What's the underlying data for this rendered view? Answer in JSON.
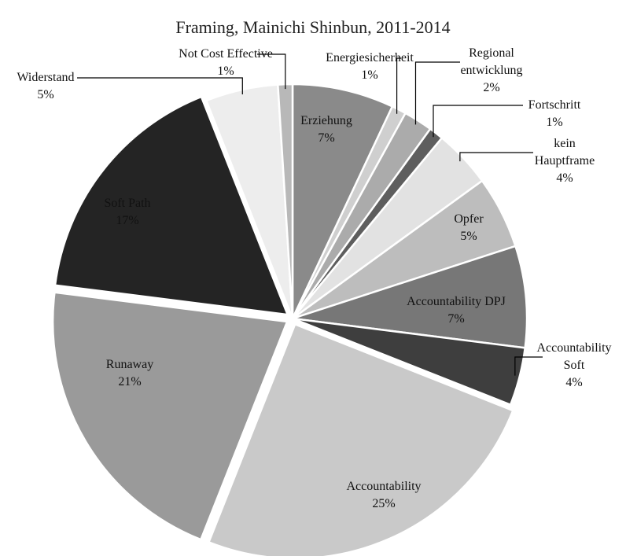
{
  "chart_data": {
    "type": "pie",
    "title": "Framing, Mainichi Shinbun, 2011-2014",
    "categories": [
      "Erziehung",
      "Energiesicherheit",
      "Regional\nentwicklung",
      "Fortschritt",
      "kein Hauptframe",
      "Opfer",
      "Accountability DPJ",
      "Accountability\nSoft",
      "Accountability",
      "Runaway",
      "Soft Path",
      "Widerstand",
      "Not Cost Effective"
    ],
    "values": [
      7,
      1,
      2,
      1,
      4,
      5,
      7,
      4,
      25,
      21,
      17,
      5,
      1
    ],
    "value_labels": [
      "7%",
      "1%",
      "2%",
      "1%",
      "4%",
      "5%",
      "7%",
      "4%",
      "25%",
      "21%",
      "17%",
      "5%",
      "1%"
    ],
    "colors": [
      "#8a8a8a",
      "#cfcfcf",
      "#ababab",
      "#5e5e5e",
      "#e2e2e2",
      "#bdbdbd",
      "#777777",
      "#3e3e3e",
      "#c9c9c9",
      "#9a9a9a",
      "#242424",
      "#ededed",
      "#b8b8b8"
    ]
  }
}
